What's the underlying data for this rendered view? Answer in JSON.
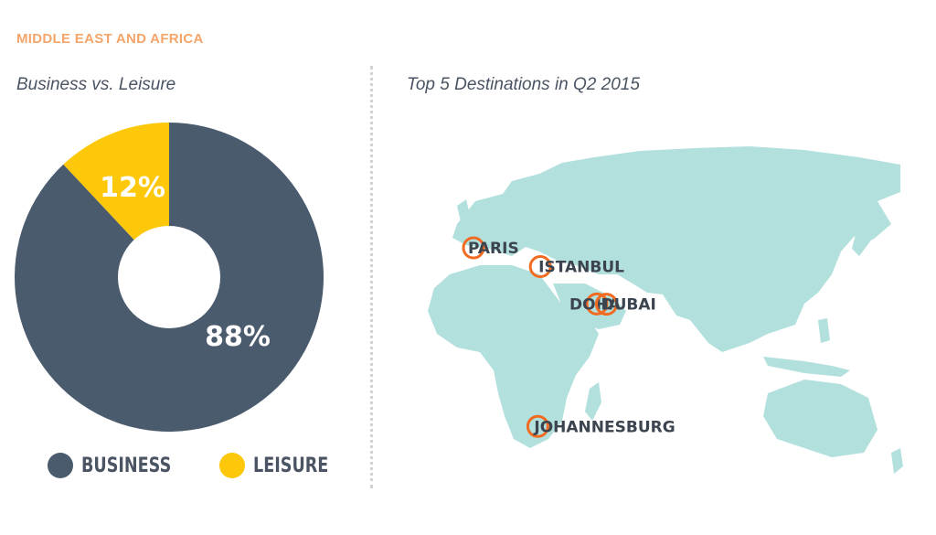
{
  "header": {
    "section_title": "MIDDLE EAST AND AFRICA"
  },
  "colors": {
    "business": "#4b5b6e",
    "leisure": "#fdc70a",
    "accent": "#f5a56a",
    "land": "#b2e0dd",
    "marker": "#f26b21"
  },
  "chart_data": [
    {
      "type": "pie",
      "title": "Business vs. Leisure",
      "slices": [
        {
          "name": "BUSINESS",
          "value": 88,
          "label": "88%"
        },
        {
          "name": "LEISURE",
          "value": 12,
          "label": "12%"
        }
      ],
      "legend": "bottom"
    }
  ],
  "map": {
    "title": "Top 5 Destinations in Q2 2015",
    "destinations": [
      {
        "name": "PARIS",
        "lat": 48.9,
        "lon": 2.4
      },
      {
        "name": "ISTANBUL",
        "lat": 41.0,
        "lon": 29.0
      },
      {
        "name": "DOHA",
        "lat": 25.3,
        "lon": 51.5
      },
      {
        "name": "DUBAI",
        "lat": 25.2,
        "lon": 55.3
      },
      {
        "name": "JOHANNESBURG",
        "lat": -26.2,
        "lon": 28.0
      }
    ]
  }
}
